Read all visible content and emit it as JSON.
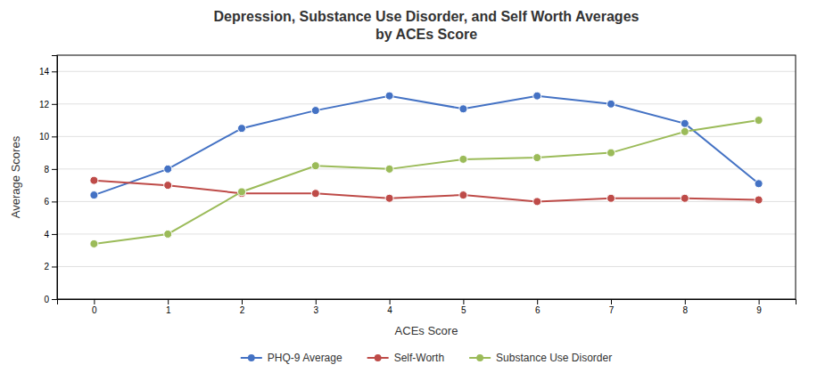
{
  "chart_data": {
    "type": "line",
    "title": "Depression, Substance Use Disorder, and Self Worth Averages\nby ACEs Score",
    "x_label": "ACEs Score",
    "y_label": "Average Scores",
    "x": [
      0,
      1,
      2,
      3,
      4,
      5,
      6,
      7,
      8,
      9
    ],
    "series": [
      {
        "name": "PHQ-9 Average",
        "color": "#4472C4",
        "marker": "circle",
        "values": [
          6.4,
          8.0,
          10.5,
          11.6,
          12.5,
          11.7,
          12.5,
          12.0,
          10.8,
          7.1
        ]
      },
      {
        "name": "Self-Worth",
        "color": "#BE4B48",
        "marker": "circle",
        "values": [
          7.3,
          7.0,
          6.5,
          6.5,
          6.2,
          6.4,
          6.0,
          6.2,
          6.2,
          6.1
        ]
      },
      {
        "name": "Substance Use Disorder",
        "color": "#9BBB59",
        "marker": "circle",
        "values": [
          3.4,
          4.0,
          6.6,
          8.2,
          8.0,
          8.6,
          8.7,
          9.0,
          10.3,
          11.0
        ]
      }
    ],
    "xlim": [
      -0.5,
      9.5
    ],
    "xticks": [
      0,
      1,
      2,
      3,
      4,
      5,
      6,
      7,
      8,
      9
    ],
    "ylim": [
      0,
      15
    ],
    "yticks": [
      0,
      2,
      4,
      6,
      8,
      10,
      12,
      14
    ],
    "grid": true,
    "legend": "bottom"
  }
}
